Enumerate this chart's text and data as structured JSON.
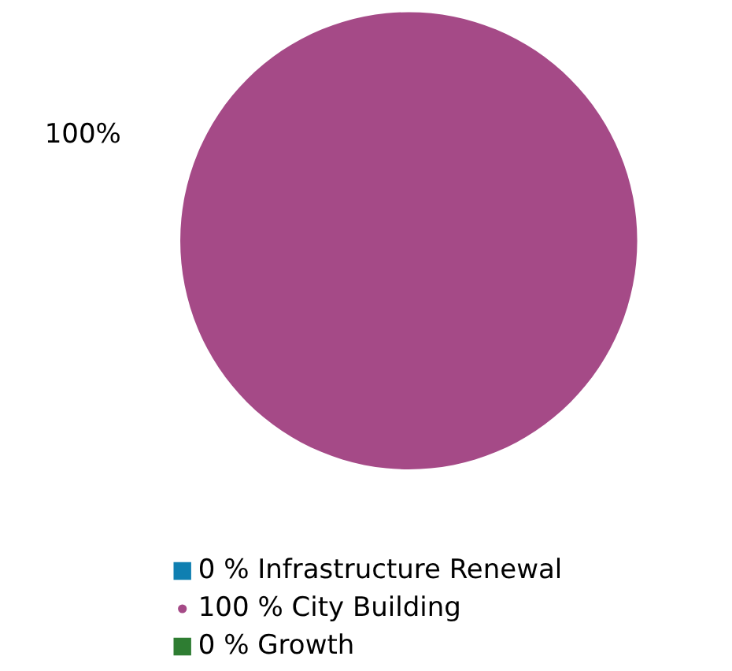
{
  "chart_data": {
    "type": "pie",
    "categories": [
      "0 % Infrastructure Renewal",
      "100 % City Building",
      "0 % Growth"
    ],
    "values": [
      0,
      100,
      0
    ],
    "colors": [
      "#0f7fb1",
      "#a54a87",
      "#2e7d32"
    ],
    "value_labels": [
      null,
      "100%",
      null
    ],
    "legend": "bottom"
  }
}
